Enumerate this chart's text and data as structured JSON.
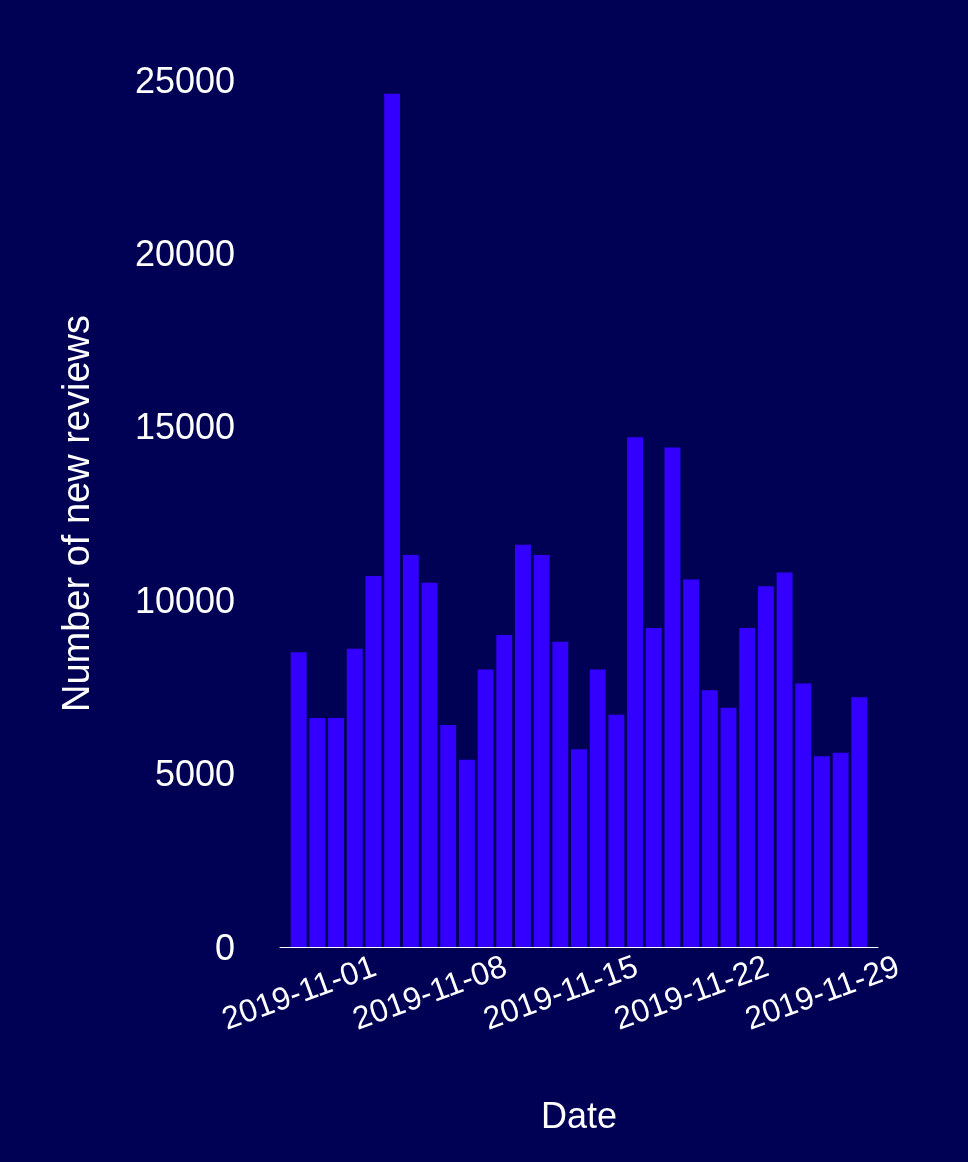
{
  "chart_data": {
    "type": "bar",
    "xlabel": "Date",
    "ylabel": "Number of new reviews",
    "x": [
      "2019-11-01",
      "2019-11-02",
      "2019-11-03",
      "2019-11-04",
      "2019-11-05",
      "2019-11-06",
      "2019-11-07",
      "2019-11-08",
      "2019-11-09",
      "2019-11-10",
      "2019-11-11",
      "2019-11-12",
      "2019-11-13",
      "2019-11-14",
      "2019-11-15",
      "2019-11-16",
      "2019-11-17",
      "2019-11-18",
      "2019-11-19",
      "2019-11-20",
      "2019-11-21",
      "2019-11-22",
      "2019-11-23",
      "2019-11-24",
      "2019-11-25",
      "2019-11-26",
      "2019-11-27",
      "2019-11-28",
      "2019-11-29",
      "2019-11-30",
      "2019-12-01"
    ],
    "values": [
      8500,
      6600,
      6600,
      8600,
      10700,
      24600,
      11300,
      10500,
      6400,
      5400,
      8000,
      9000,
      11600,
      11300,
      8800,
      5700,
      8000,
      6700,
      14700,
      9200,
      14400,
      10600,
      7400,
      6900,
      9200,
      10400,
      10800,
      7600,
      5500,
      5600,
      7200
    ],
    "color": "#3300ff",
    "xlim": [
      "2019-10-31",
      "2019-12-02"
    ],
    "xticks": [
      "2019-11-01",
      "2019-11-08",
      "2019-11-15",
      "2019-11-22",
      "2019-11-29"
    ],
    "ylim": [
      0,
      25000
    ],
    "yticks": [
      0,
      5000,
      10000,
      15000,
      20000,
      25000
    ],
    "grid": false
  }
}
